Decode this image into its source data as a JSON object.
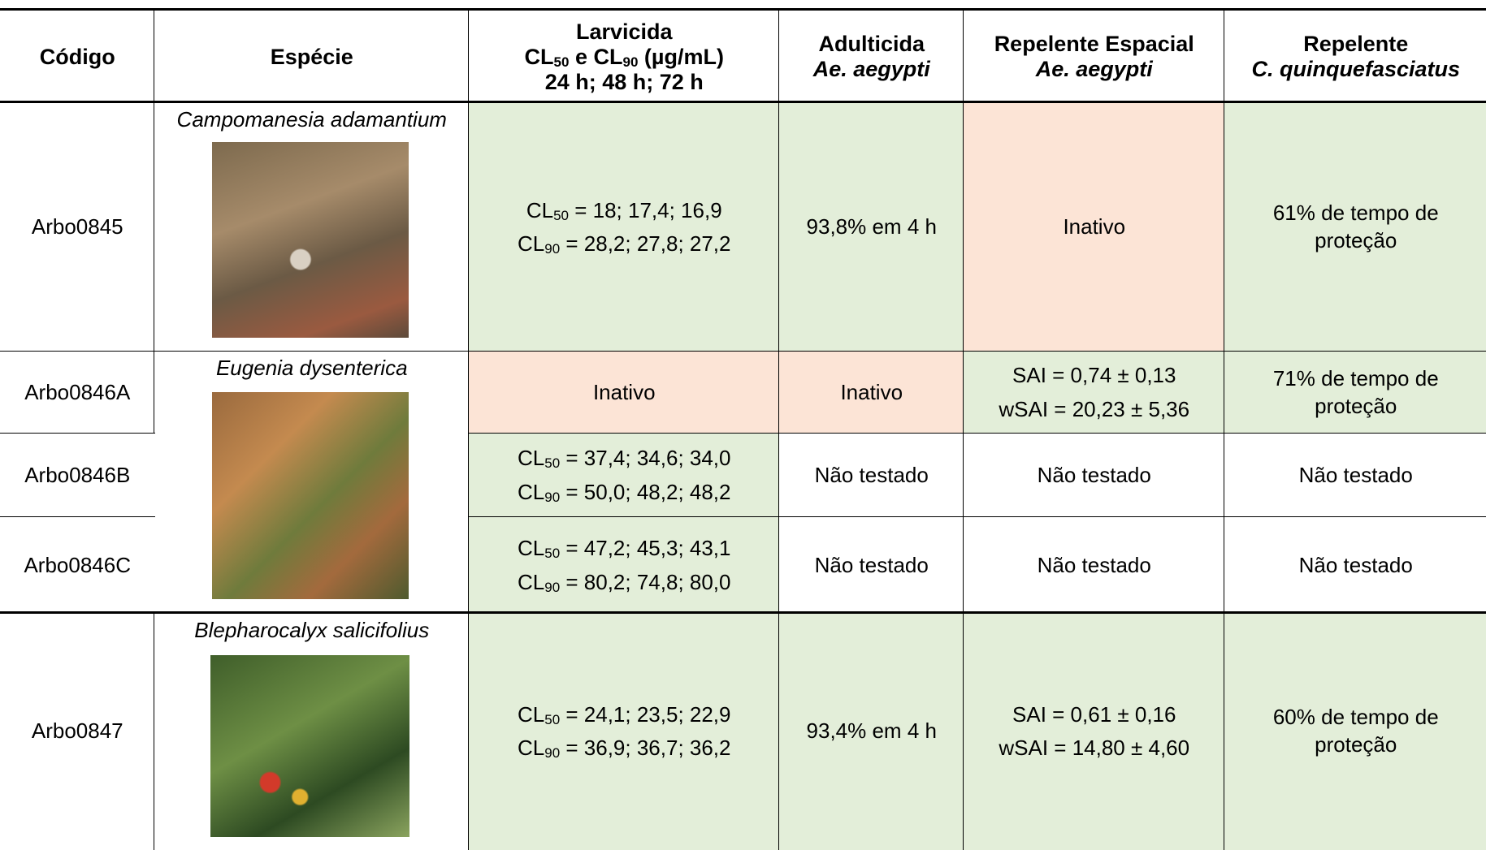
{
  "header": {
    "codigo": "Código",
    "especie": "Espécie",
    "larvicida": {
      "title": "Larvicida",
      "cl": "CL",
      "sub50": "50",
      "and": " e CL",
      "sub90": "90",
      "unit": " (µg/mL)",
      "times": "24 h; 48 h; 72 h"
    },
    "adulticida": {
      "title": "Adulticida",
      "species": "Ae. aegypti"
    },
    "repelente_espacial": {
      "title": "Repelente Espacial",
      "species": "Ae. aegypti"
    },
    "repelente": {
      "title": "Repelente",
      "species": "C. quinquefasciatus"
    }
  },
  "rows": [
    {
      "codigo": "Arbo0845",
      "especie": "Campomanesia adamantium",
      "larvicida": [
        {
          "label": "CL",
          "sub": "50",
          "text": " = 18; 17,4; 16,9"
        },
        {
          "label": "CL",
          "sub": "90",
          "text": " = 28,2; 27,8; 27,2"
        }
      ],
      "adulticida": "93,8% em 4 h",
      "repelente_espacial": [
        "Inativo"
      ],
      "repelente": "61% de tempo de proteção"
    },
    {
      "codigo": "Arbo0846A",
      "especie": "Eugenia dysenterica",
      "larvicida": [
        {
          "text": "Inativo"
        }
      ],
      "adulticida": "Inativo",
      "repelente_espacial": [
        "SAI = 0,74 ± 0,13",
        "wSAI = 20,23 ± 5,36"
      ],
      "repelente": "71% de tempo de proteção"
    },
    {
      "codigo": "Arbo0846B",
      "larvicida": [
        {
          "label": "CL",
          "sub": "50",
          "text": " = 37,4; 34,6; 34,0"
        },
        {
          "label": "CL",
          "sub": "90",
          "text": " = 50,0; 48,2; 48,2"
        }
      ],
      "adulticida": "Não testado",
      "repelente_espacial": [
        "Não testado"
      ],
      "repelente": "Não testado"
    },
    {
      "codigo": "Arbo0846C",
      "larvicida": [
        {
          "label": "CL",
          "sub": "50",
          "text": " = 47,2; 45,3; 43,1"
        },
        {
          "label": "CL",
          "sub": "90",
          "text": " = 80,2; 74,8; 80,0"
        }
      ],
      "adulticida": "Não testado",
      "repelente_espacial": [
        "Não testado"
      ],
      "repelente": "Não testado"
    },
    {
      "codigo": "Arbo0847",
      "especie": "Blepharocalyx salicifolius",
      "larvicida": [
        {
          "label": "CL",
          "sub": "50",
          "text": " = 24,1; 23,5; 22,9"
        },
        {
          "label": "CL",
          "sub": "90",
          "text": " = 36,9; 36,7; 36,2"
        }
      ],
      "adulticida": "93,4% em 4 h",
      "repelente_espacial": [
        "SAI = 0,61 ± 0,16",
        "wSAI = 14,80 ± 4,60"
      ],
      "repelente": "60% de tempo de proteção"
    }
  ]
}
